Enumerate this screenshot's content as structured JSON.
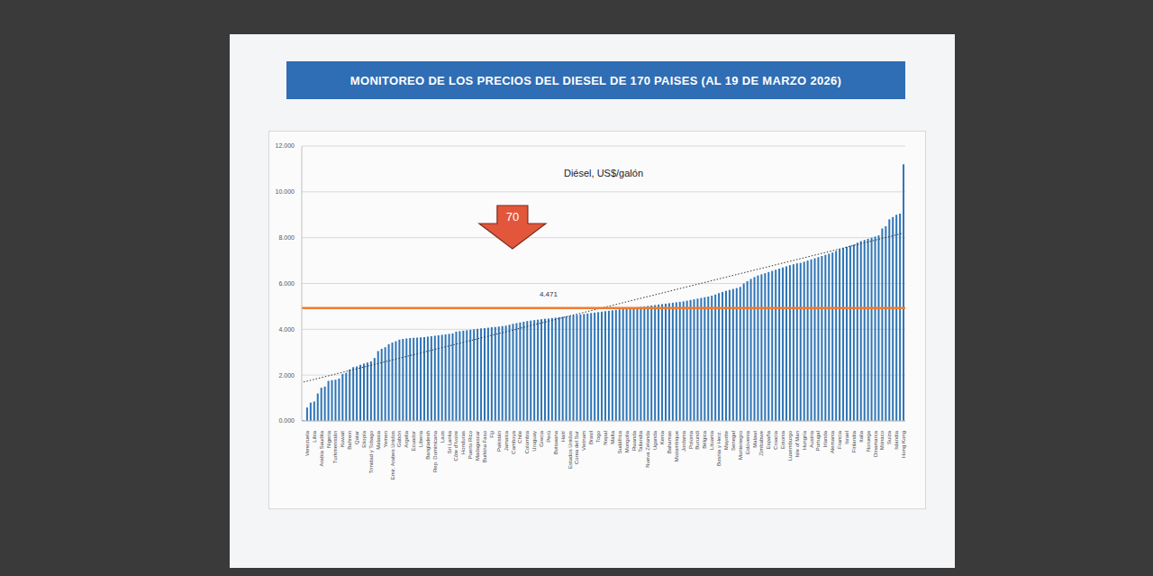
{
  "header": {
    "title": "MONITOREO DE LOS PRECIOS DEL DIESEL DE 170 PAISES (AL 19 DE MARZO 2026)"
  },
  "chart_data": {
    "type": "bar",
    "title": "Diésel, US$/galón",
    "categories": [
      null,
      "Venezuela",
      null,
      "Libia",
      null,
      "Arabia Saudita",
      null,
      "Nigeria",
      null,
      "Turkmenistán",
      null,
      "Kuwait",
      null,
      "Bahrein",
      null,
      "Qatar",
      null,
      "Etiopía",
      null,
      "Trinidad y Tobago",
      null,
      "Malasia",
      null,
      "Yemen",
      null,
      "Emir. Arabes Unidos",
      null,
      "Gabón",
      null,
      "Argelia",
      null,
      "Ecuador",
      null,
      "Liberia",
      null,
      "Bangladesh",
      null,
      "Rep. Dominicana",
      null,
      "Laos",
      null,
      "Sri Lanka",
      null,
      "Côte d'Ivoire",
      null,
      "Honduras",
      null,
      "Puerto Rico",
      null,
      "Madagascar",
      null,
      "Burkina Faso",
      null,
      "Fiji",
      null,
      "Pakistán",
      null,
      "Jamaica",
      null,
      "Camboya",
      null,
      "Chile",
      null,
      "Colombia",
      null,
      "Uruguay",
      null,
      "Grecia",
      null,
      "Perú",
      null,
      "Botswana",
      null,
      "Haití",
      null,
      "Estados Unidos",
      null,
      "Corea del Sur",
      null,
      "Vietnam",
      null,
      "Brasil",
      null,
      "Togo",
      null,
      "Nepal",
      null,
      "Malta",
      null,
      "Sudáfrica",
      null,
      "Mongolia",
      null,
      "Rwanda",
      null,
      "Tailandia",
      null,
      "Nueva Zelanda",
      null,
      "Uganda",
      null,
      "Kenia",
      null,
      "Bahamas",
      null,
      "Mozambique",
      null,
      "Jordania",
      null,
      "Polonia",
      null,
      "Burundi",
      null,
      "Bélgica",
      null,
      "Lituania",
      null,
      "Bosnia y Herz.",
      null,
      "Mayotte",
      null,
      "Senegal",
      null,
      "Montenegro",
      null,
      "Eslovenia",
      null,
      "Malawi",
      null,
      "Zimbabwe",
      null,
      "España",
      null,
      "Croacia",
      null,
      "Estonia",
      null,
      "Luxemburgo",
      null,
      "Isle of Man",
      null,
      "Hungría",
      null,
      "Austria",
      null,
      "Portugal",
      null,
      "Irlanda",
      null,
      "Alemania",
      null,
      "Francia",
      null,
      "Israel",
      null,
      "Finlandia",
      null,
      "Italia",
      null,
      "Noruega",
      null,
      "Dinamarca",
      null,
      "Mónaco",
      null,
      "Suiza",
      null,
      "Islandia",
      null,
      "Hong Kong"
    ],
    "values": [
      0.03,
      0.59,
      0.8,
      0.85,
      1.2,
      1.45,
      1.5,
      1.75,
      1.78,
      1.8,
      1.85,
      2.05,
      2.1,
      2.25,
      2.35,
      2.38,
      2.45,
      2.5,
      2.55,
      2.6,
      2.75,
      3.05,
      3.15,
      3.22,
      3.35,
      3.42,
      3.48,
      3.55,
      3.58,
      3.6,
      3.62,
      3.63,
      3.64,
      3.65,
      3.66,
      3.68,
      3.7,
      3.72,
      3.74,
      3.76,
      3.78,
      3.8,
      3.82,
      3.9,
      3.92,
      3.94,
      3.96,
      3.98,
      4.0,
      4.02,
      4.04,
      4.05,
      4.07,
      4.09,
      4.1,
      4.12,
      4.14,
      4.16,
      4.2,
      4.24,
      4.27,
      4.3,
      4.33,
      4.36,
      4.38,
      4.4,
      4.42,
      4.44,
      4.46,
      4.471,
      4.49,
      4.51,
      4.53,
      4.55,
      4.57,
      4.59,
      4.61,
      4.63,
      4.65,
      4.67,
      4.69,
      4.71,
      4.73,
      4.75,
      4.77,
      4.79,
      4.81,
      4.83,
      4.85,
      4.87,
      4.89,
      4.9,
      4.92,
      4.94,
      4.96,
      4.98,
      5.0,
      5.02,
      5.04,
      5.06,
      5.08,
      5.1,
      5.12,
      5.14,
      5.16,
      5.18,
      5.2,
      5.22,
      5.25,
      5.28,
      5.31,
      5.34,
      5.37,
      5.4,
      5.43,
      5.47,
      5.52,
      5.58,
      5.63,
      5.68,
      5.72,
      5.76,
      5.8,
      5.85,
      6.0,
      6.1,
      6.2,
      6.28,
      6.35,
      6.4,
      6.45,
      6.5,
      6.55,
      6.6,
      6.65,
      6.7,
      6.75,
      6.8,
      6.84,
      6.88,
      6.9,
      6.95,
      7.0,
      7.05,
      7.1,
      7.15,
      7.2,
      7.25,
      7.3,
      7.35,
      7.42,
      7.5,
      7.55,
      7.6,
      7.65,
      7.7,
      7.78,
      7.85,
      7.9,
      7.95,
      8.0,
      8.05,
      8.1,
      8.4,
      8.5,
      8.8,
      8.9,
      9.0,
      9.05,
      11.2
    ],
    "color": "#2e75b6",
    "ylim": [
      0,
      12
    ],
    "yticks": [
      {
        "value": 0,
        "label": "0.000"
      },
      {
        "value": 2,
        "label": "2.000"
      },
      {
        "value": 4,
        "label": "4.000"
      },
      {
        "value": 6,
        "label": "6.000"
      },
      {
        "value": 8,
        "label": "8.000"
      },
      {
        "value": 10,
        "label": "10.000"
      },
      {
        "value": 12,
        "label": "12.000"
      }
    ],
    "grid": true,
    "reference_line": {
      "value": 4.93,
      "color": "#ed7d31"
    },
    "trend_line": {
      "values": [
        1.7,
        8.2
      ],
      "line_style": "dotted"
    },
    "annotations": [
      {
        "text": "4.471",
        "x": 69,
        "y": 4.471
      },
      {
        "text": "70",
        "x": 69
      }
    ]
  }
}
